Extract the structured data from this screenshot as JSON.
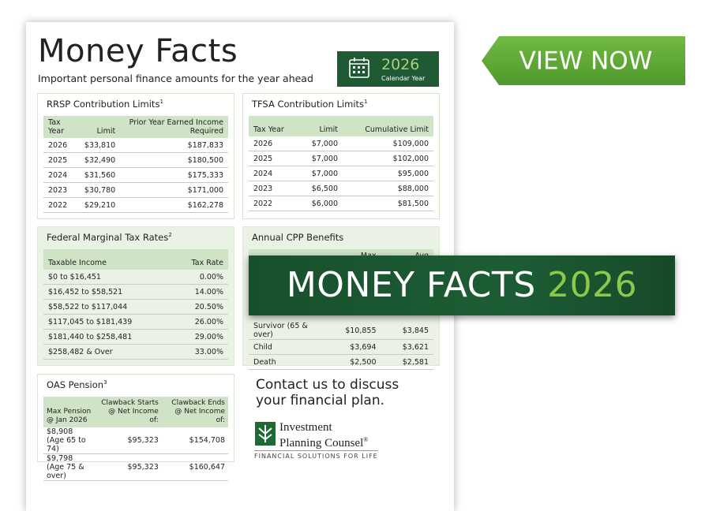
{
  "button": {
    "label": "VIEW NOW"
  },
  "banner": {
    "text": "MONEY FACTS",
    "year": "2026"
  },
  "document": {
    "title": "Money Facts",
    "subtitle": "Important personal finance amounts for the year ahead",
    "badge": {
      "year": "2026",
      "label": "Calendar Year"
    },
    "tables": [
      {
        "title": "RRSP Contribution Limits",
        "note": "1",
        "columns": [
          "Tax Year",
          "Limit",
          "Prior Year Earned Income Required"
        ],
        "rows": [
          [
            "2026",
            "$33,810",
            "$187,833"
          ],
          [
            "2025",
            "$32,490",
            "$180,500"
          ],
          [
            "2024",
            "$31,560",
            "$175,333"
          ],
          [
            "2023",
            "$30,780",
            "$171,000"
          ],
          [
            "2022",
            "$29,210",
            "$162,278"
          ]
        ]
      },
      {
        "title": "TFSA Contribution Limits",
        "note": "1",
        "columns": [
          "Tax Year",
          "Limit",
          "Cumulative Limit"
        ],
        "rows": [
          [
            "2026",
            "$7,000",
            "$109,000"
          ],
          [
            "2025",
            "$7,000",
            "$102,000"
          ],
          [
            "2024",
            "$7,000",
            "$95,000"
          ],
          [
            "2023",
            "$6,500",
            "$88,000"
          ],
          [
            "2022",
            "$6,000",
            "$81,500"
          ]
        ]
      },
      {
        "title": "Federal Marginal Tax Rates",
        "note": "2",
        "columns": [
          "Taxable Income",
          "Tax Rate"
        ],
        "rows": [
          [
            "$0 to $16,451",
            "0.00%"
          ],
          [
            "$16,452 to $58,521",
            "14.00%"
          ],
          [
            "$58,522 to $117,044",
            "20.50%"
          ],
          [
            "$117,045 to $181,439",
            "26.00%"
          ],
          [
            "$181,440  to $258,481",
            "29.00%"
          ],
          [
            "$258,482 & Over",
            "33.00%"
          ]
        ]
      },
      {
        "title": "Annual CPP Benefits",
        "columns": [
          "Max Amount",
          "Avg Amount"
        ],
        "rows": [
          [
            "Survivor (65 & over)",
            "$10,855",
            "$3,845"
          ],
          [
            "Child",
            "$3,694",
            "$3,621"
          ],
          [
            "Death",
            "$2,500",
            "$2,581"
          ]
        ]
      },
      {
        "title": "OAS Pension",
        "note": "3",
        "columns": [
          "Max Pension @ Jan 2026",
          "Clawback Starts @ Net Income of:",
          "Clawback Ends @ Net Income of:"
        ],
        "rows": [
          [
            "$8,908 (Age 65 to 74)",
            "$95,323",
            "$154,708"
          ],
          [
            "$9,798 (Age 75 & over)",
            "$95,323",
            "$160,647"
          ]
        ]
      }
    ],
    "contact": [
      "Contact us to discuss",
      "your financial plan."
    ],
    "logo": {
      "name": [
        "Investment",
        "Planning Counsel"
      ],
      "mark": "®",
      "tagline": "FINANCIAL SOLUTIONS FOR LIFE"
    }
  }
}
